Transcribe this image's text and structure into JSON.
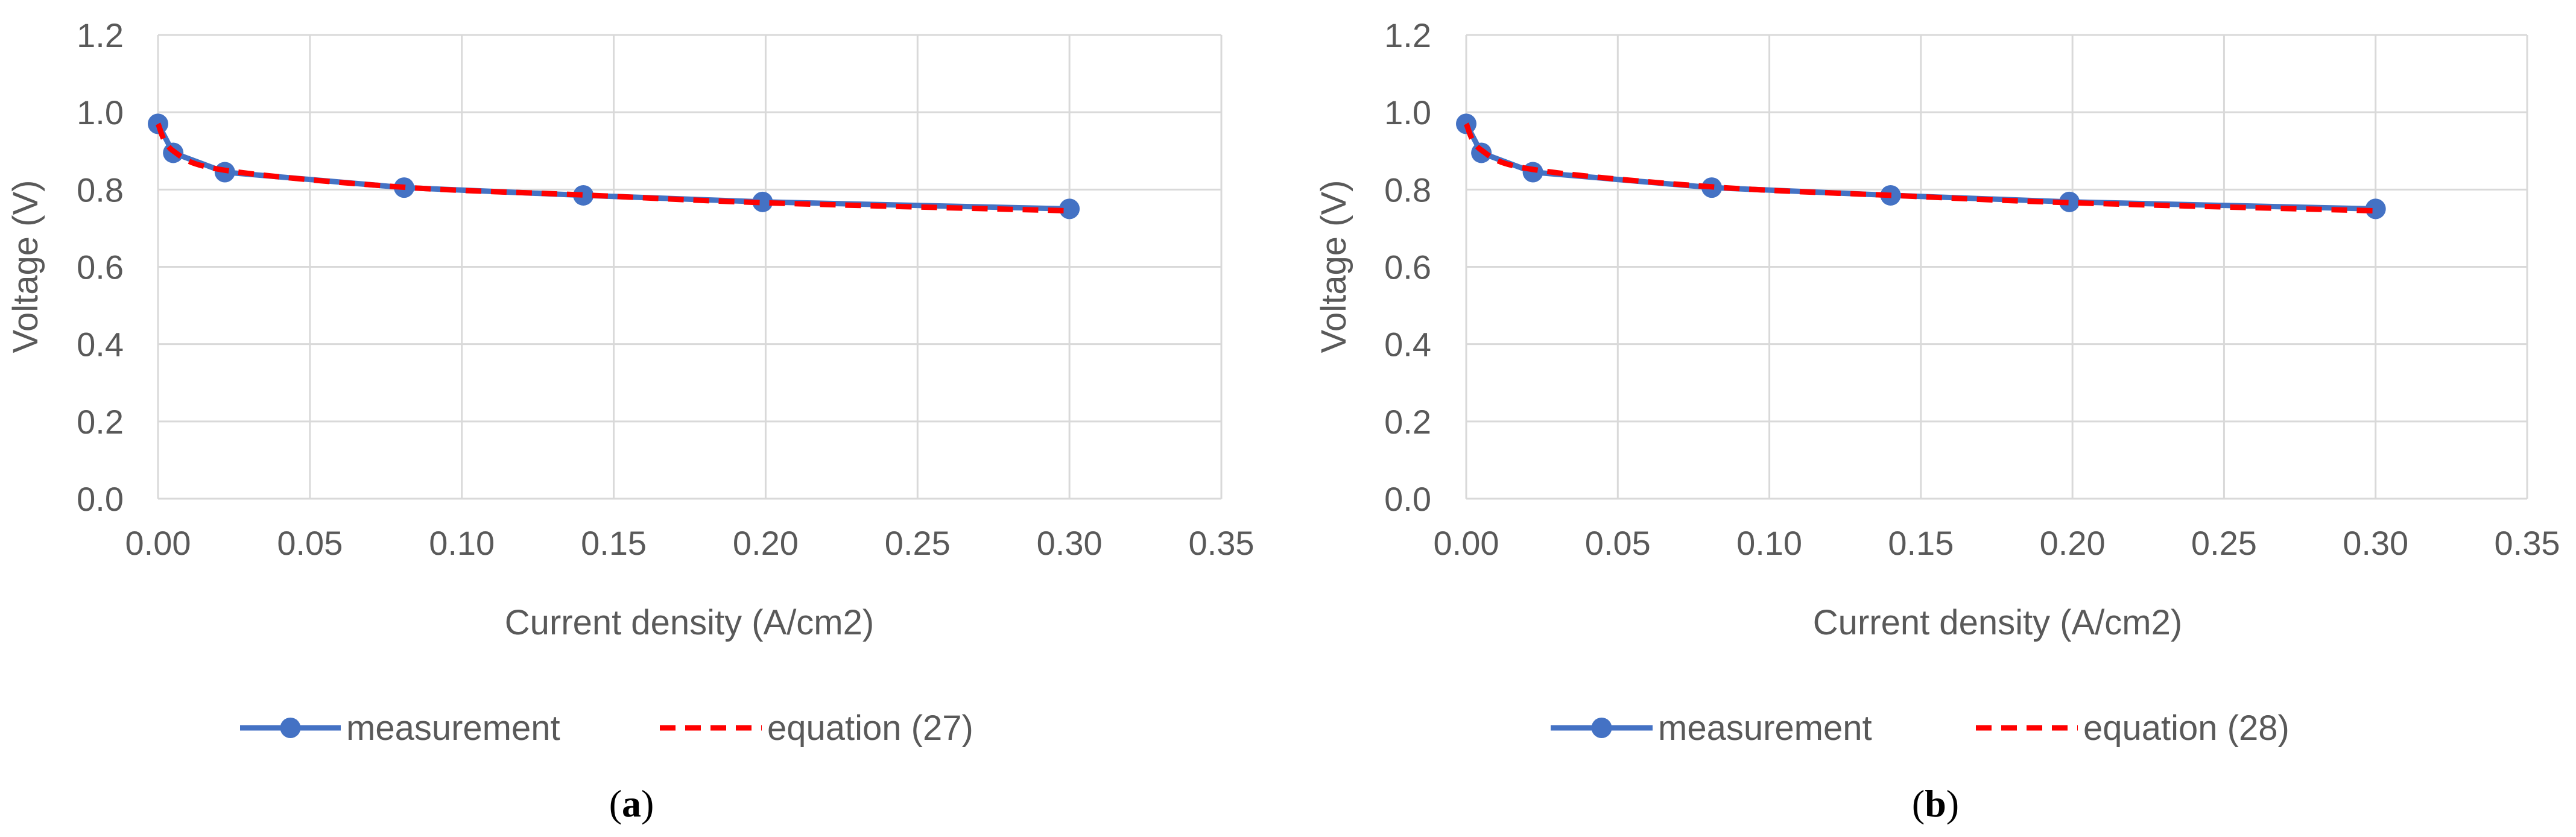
{
  "chart_data": [
    {
      "type": "line",
      "panel_label": "(a)",
      "panel_letter": "a",
      "xlabel": "Current density (A/cm2)",
      "ylabel": "Voltage (V)",
      "xlim": [
        0,
        0.35
      ],
      "ylim": [
        0,
        1.2
      ],
      "x_ticks": [
        "0.00",
        "0.05",
        "0.10",
        "0.15",
        "0.20",
        "0.25",
        "0.30",
        "0.35"
      ],
      "y_ticks": [
        "0.0",
        "0.2",
        "0.4",
        "0.6",
        "0.8",
        "1.0",
        "1.2"
      ],
      "grid": true,
      "legend_position": "bottom",
      "series": [
        {
          "name": "measurement",
          "style": "solid-with-markers",
          "color": "#4472C4",
          "x": [
            0.0,
            0.005,
            0.022,
            0.081,
            0.14,
            0.199,
            0.3
          ],
          "y": [
            0.97,
            0.895,
            0.845,
            0.805,
            0.785,
            0.768,
            0.75
          ]
        },
        {
          "name": "equation (27)",
          "style": "dashed",
          "color": "#FF0000",
          "x": [
            0.0,
            0.005,
            0.022,
            0.081,
            0.14,
            0.199,
            0.3
          ],
          "y": [
            0.97,
            0.9,
            0.85,
            0.806,
            0.786,
            0.766,
            0.745
          ]
        }
      ]
    },
    {
      "type": "line",
      "panel_label": "(b)",
      "panel_letter": "b",
      "xlabel": "Current density (A/cm2)",
      "ylabel": "Voltage (V)",
      "xlim": [
        0,
        0.35
      ],
      "ylim": [
        0,
        1.2
      ],
      "x_ticks": [
        "0.00",
        "0.05",
        "0.10",
        "0.15",
        "0.20",
        "0.25",
        "0.30",
        "0.35"
      ],
      "y_ticks": [
        "0.0",
        "0.2",
        "0.4",
        "0.6",
        "0.8",
        "1.0",
        "1.2"
      ],
      "grid": true,
      "legend_position": "bottom",
      "series": [
        {
          "name": "measurement",
          "style": "solid-with-markers",
          "color": "#4472C4",
          "x": [
            0.0,
            0.005,
            0.022,
            0.081,
            0.14,
            0.199,
            0.3
          ],
          "y": [
            0.97,
            0.895,
            0.845,
            0.805,
            0.785,
            0.768,
            0.75
          ]
        },
        {
          "name": "equation (28)",
          "style": "dashed",
          "color": "#FF0000",
          "x": [
            0.0,
            0.005,
            0.022,
            0.081,
            0.14,
            0.199,
            0.3
          ],
          "y": [
            0.97,
            0.902,
            0.852,
            0.807,
            0.785,
            0.766,
            0.745
          ]
        }
      ]
    }
  ],
  "colors": {
    "grid": "#D9D9D9",
    "text": "#595959",
    "background": "#FFFFFF"
  }
}
